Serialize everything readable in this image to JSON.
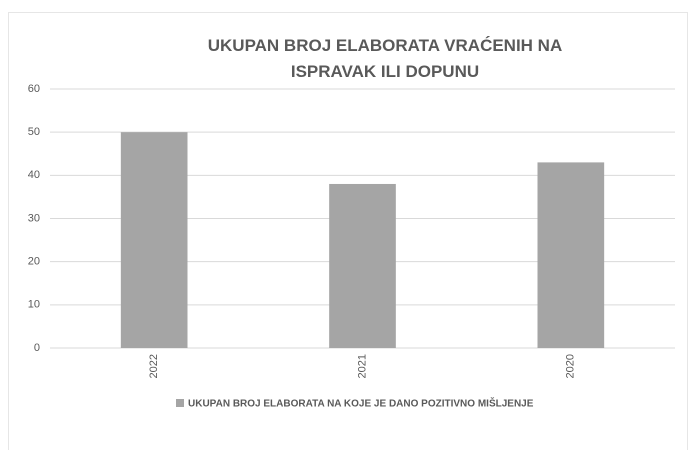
{
  "chart_data": {
    "type": "bar",
    "title": "UKUPAN BROJ ELABORATA VRAĆENIH NA ISPRAVAK ILI DOPUNU",
    "categories": [
      "2022",
      "2021",
      "2020"
    ],
    "series": [
      {
        "name": "UKUPAN BROJ ELABORATA NA KOJE JE DANO POZITIVNO MIŠLJENJE",
        "color": "#a5a5a5",
        "values": [
          50,
          38,
          43
        ]
      }
    ],
    "ylim": [
      0,
      60
    ],
    "yticks": [
      0,
      10,
      20,
      30,
      40,
      50,
      60
    ],
    "grid": true,
    "legend": "bottom"
  }
}
